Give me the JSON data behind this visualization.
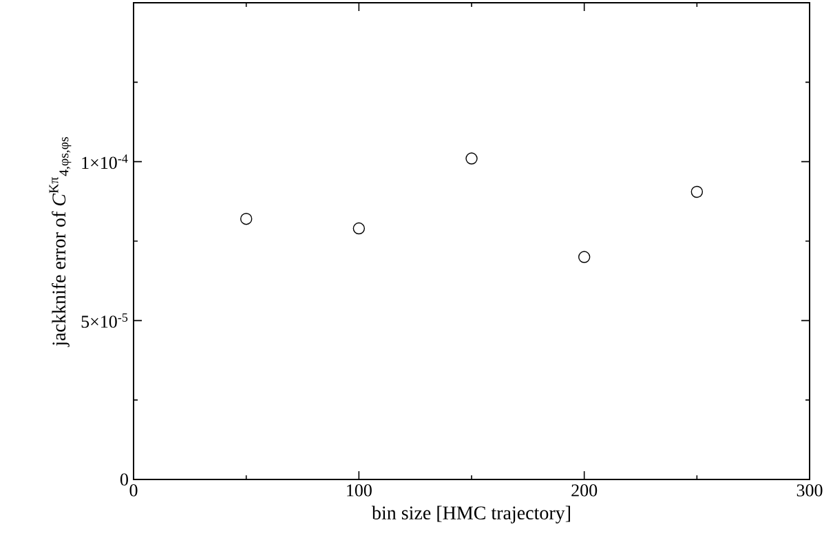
{
  "chart_data": {
    "type": "scatter",
    "xlabel": "bin size [HMC trajectory]",
    "ylabel": "jackknife error of *C*$^{Kπ}$$_{4,φs,φs}$",
    "x": [
      50,
      100,
      150,
      200,
      250
    ],
    "values": [
      8.2e-05,
      7.9e-05,
      0.000101,
      7e-05,
      9.05e-05
    ],
    "color": "#000000",
    "marker": "circle",
    "xlim": [
      0,
      300
    ],
    "ylim": [
      0,
      0.00015
    ],
    "xticks": [
      0,
      {
        "value": 50,
        "label": null
      },
      100,
      {
        "value": 150,
        "label": null
      },
      200,
      {
        "value": 250,
        "label": null
      },
      300
    ],
    "yticks": [
      0,
      {
        "value": 2.5e-05,
        "label": null
      },
      {
        "value": 5e-05,
        "label": "5×10$^{-5}$"
      },
      {
        "value": 7.5e-05,
        "label": null
      },
      {
        "value": 0.0001,
        "label": "1×10$^{-4}$"
      },
      {
        "value": 0.000125,
        "label": null
      }
    ],
    "grid": false
  }
}
